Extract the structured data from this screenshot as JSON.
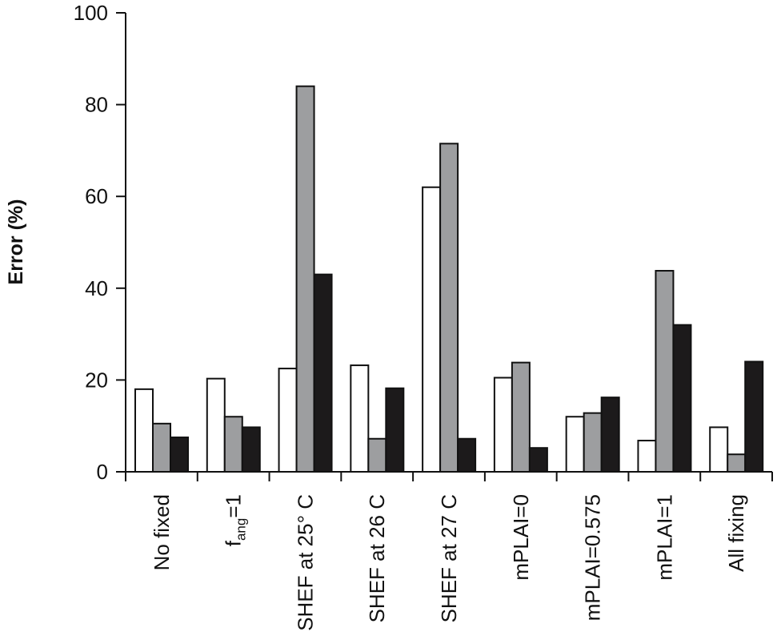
{
  "chart_data": {
    "type": "bar",
    "title": "",
    "xlabel": "",
    "ylabel": "Error (%)",
    "ylim": [
      0,
      100
    ],
    "yticks": [
      "0",
      "20",
      "40",
      "60",
      "80",
      "100"
    ],
    "ytick_values": [
      0,
      20,
      40,
      60,
      80,
      100
    ],
    "categories": [
      {
        "label": "No fixed"
      },
      {
        "label": "f",
        "sub": "ang",
        "suffix": "=1"
      },
      {
        "label": "SHEF at 25° C"
      },
      {
        "label": "SHEF at 26 C"
      },
      {
        "label": "SHEF at 27 C"
      },
      {
        "label": "mPLAI=0"
      },
      {
        "label": "mPLAI=0.575"
      },
      {
        "label": "mPLAI=1"
      },
      {
        "label": "All fixing"
      }
    ],
    "series": [
      {
        "color": "#ffffff",
        "values": [
          18,
          20.3,
          22.5,
          23.2,
          62,
          20.5,
          12,
          6.8,
          9.7
        ]
      },
      {
        "color": "#9d9ea0",
        "values": [
          10.5,
          12,
          84,
          7.2,
          71.5,
          23.8,
          12.8,
          43.8,
          3.8
        ]
      },
      {
        "color": "#1c1a1b",
        "values": [
          7.5,
          9.7,
          43,
          18.2,
          7.2,
          5.2,
          16.2,
          32,
          24
        ]
      }
    ],
    "grid": false,
    "legend": false,
    "bar_edge_color": "#111111"
  }
}
